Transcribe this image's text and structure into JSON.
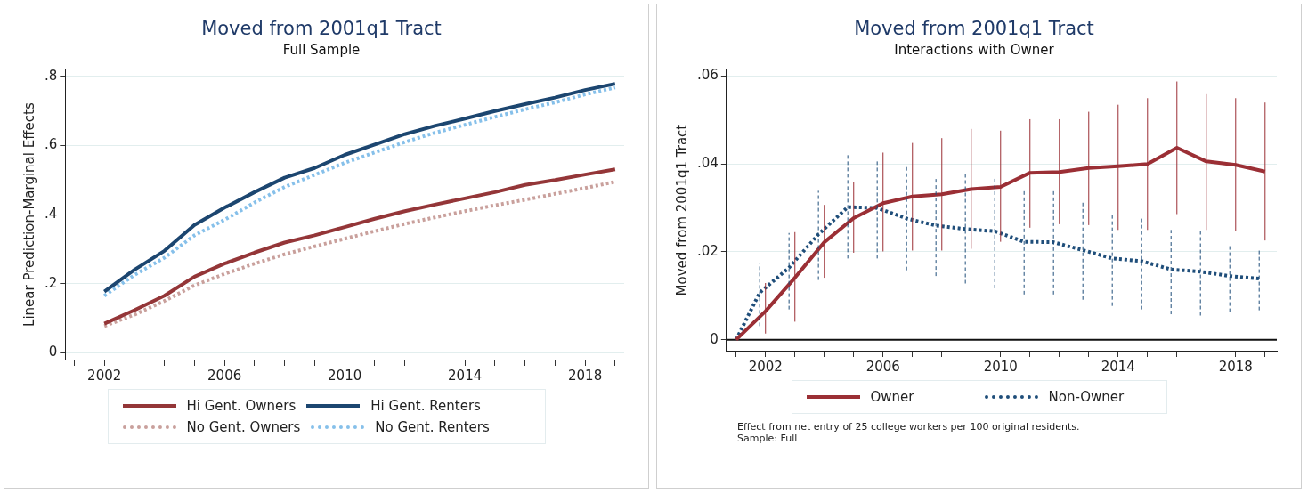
{
  "chart_data": [
    {
      "type": "line",
      "title": "Moved from 2001q1 Tract",
      "subtitle": "Full Sample",
      "ylabel": "Linear Prediction-Marginal Effects",
      "x": [
        2002,
        2003,
        2004,
        2005,
        2006,
        2007,
        2008,
        2009,
        2010,
        2011,
        2012,
        2013,
        2014,
        2015,
        2016,
        2017,
        2018,
        2019
      ],
      "series": [
        {
          "name": "Hi Gent. Owners",
          "color": "#943638",
          "line_style": "solid",
          "values": [
            0.084,
            0.123,
            0.165,
            0.22,
            0.258,
            0.29,
            0.319,
            0.34,
            0.364,
            0.388,
            0.41,
            0.429,
            0.447,
            0.465,
            0.486,
            0.5,
            0.516,
            0.531
          ]
        },
        {
          "name": "Hi Gent. Renters",
          "color": "#1c4670",
          "line_style": "solid",
          "values": [
            0.177,
            0.24,
            0.295,
            0.37,
            0.42,
            0.465,
            0.507,
            0.535,
            0.573,
            0.603,
            0.633,
            0.657,
            0.678,
            0.7,
            0.72,
            0.739,
            0.761,
            0.779
          ]
        },
        {
          "name": "No Gent. Owners",
          "color": "#c9a09c",
          "line_style": "dotted",
          "values": [
            0.077,
            0.11,
            0.15,
            0.195,
            0.228,
            0.258,
            0.285,
            0.308,
            0.33,
            0.352,
            0.373,
            0.392,
            0.41,
            0.427,
            0.443,
            0.46,
            0.477,
            0.495
          ]
        },
        {
          "name": "No Gent. Renters",
          "color": "#86c0ea",
          "line_style": "dotted",
          "values": [
            0.165,
            0.225,
            0.275,
            0.34,
            0.385,
            0.435,
            0.48,
            0.515,
            0.55,
            0.58,
            0.61,
            0.637,
            0.66,
            0.683,
            0.705,
            0.725,
            0.748,
            0.768
          ]
        }
      ],
      "xlim": [
        2000.7,
        2019.3
      ],
      "xticks": [
        {
          "value": 2001,
          "label": null
        },
        2002,
        {
          "value": 2003,
          "label": null
        },
        {
          "value": 2004,
          "label": null
        },
        {
          "value": 2005,
          "label": null
        },
        2006,
        {
          "value": 2007,
          "label": null
        },
        {
          "value": 2008,
          "label": null
        },
        {
          "value": 2009,
          "label": null
        },
        2010,
        {
          "value": 2011,
          "label": null
        },
        {
          "value": 2012,
          "label": null
        },
        {
          "value": 2013,
          "label": null
        },
        2014,
        {
          "value": 2015,
          "label": null
        },
        {
          "value": 2016,
          "label": null
        },
        {
          "value": 2017,
          "label": null
        },
        2018,
        {
          "value": 2019,
          "label": null
        }
      ],
      "ylim": [
        -0.02,
        0.82
      ],
      "yticks": [
        0,
        {
          "value": 0.2,
          "label": ".2"
        },
        {
          "value": 0.4,
          "label": ".4"
        },
        {
          "value": 0.6,
          "label": ".6"
        },
        {
          "value": 0.8,
          "label": ".8"
        }
      ],
      "grid": "y",
      "legend": "bottom",
      "marker": "none"
    },
    {
      "type": "line",
      "title": "Moved from 2001q1 Tract",
      "subtitle": "Interactions with Owner",
      "ylabel": "Moved from 2001q1 Tract",
      "x": [
        2001,
        2002,
        2003,
        2004,
        2005,
        2006,
        2007,
        2008,
        2009,
        2010,
        2011,
        2012,
        2013,
        2014,
        2015,
        2016,
        2017,
        2018,
        2019
      ],
      "series": [
        {
          "name": "Owner",
          "color": "#9b2f35",
          "line_style": "solid",
          "values": [
            0,
            0.0065,
            0.0141,
            0.0222,
            0.0277,
            0.0311,
            0.0326,
            0.0331,
            0.0343,
            0.0348,
            0.038,
            0.0382,
            0.0391,
            0.0395,
            0.04,
            0.0437,
            0.0406,
            0.0398,
            0.0383
          ],
          "errors": [
            null,
            [
              0.0014,
              0.0129
            ],
            [
              0.0041,
              0.0245
            ],
            [
              0.0141,
              0.0307
            ],
            [
              0.0198,
              0.0359
            ],
            [
              0.0201,
              0.0426
            ],
            [
              0.0203,
              0.0448
            ],
            [
              0.0203,
              0.0459
            ],
            [
              0.0207,
              0.048
            ],
            [
              0.0223,
              0.0476
            ],
            [
              0.0255,
              0.0502
            ],
            [
              0.0263,
              0.0502
            ],
            [
              0.0261,
              0.0519
            ],
            [
              0.025,
              0.0535
            ],
            [
              0.025,
              0.055
            ],
            [
              0.0286,
              0.0588
            ],
            [
              0.025,
              0.0559
            ],
            [
              0.0247,
              0.055
            ],
            [
              0.0226,
              0.054
            ]
          ]
        },
        {
          "name": "Non-Owner",
          "color": "#1f4e7a",
          "line_style": "dotted",
          "x": [
            2001,
            2001.8,
            2002.8,
            2003.8,
            2004.8,
            2005.8,
            2006.8,
            2007.8,
            2008.8,
            2009.8,
            2010.8,
            2011.8,
            2012.8,
            2013.8,
            2014.8,
            2015.8,
            2016.8,
            2017.8,
            2018.8
          ],
          "values": [
            0,
            0.0107,
            0.0164,
            0.024,
            0.0302,
            0.03,
            0.0276,
            0.026,
            0.0252,
            0.0247,
            0.0223,
            0.0222,
            0.0204,
            0.0185,
            0.0179,
            0.016,
            0.0155,
            0.0145,
            0.0139
          ],
          "errors": [
            null,
            [
              0.0031,
              0.0174
            ],
            [
              0.0069,
              0.0243
            ],
            [
              0.0136,
              0.0339
            ],
            [
              0.0185,
              0.0423
            ],
            [
              0.0185,
              0.0409
            ],
            [
              0.0158,
              0.0397
            ],
            [
              0.0145,
              0.0369
            ],
            [
              0.0128,
              0.0378
            ],
            [
              0.0117,
              0.0372
            ],
            [
              0.0103,
              0.034
            ],
            [
              0.0103,
              0.034
            ],
            [
              0.0091,
              0.0317
            ],
            [
              0.0077,
              0.0286
            ],
            [
              0.0069,
              0.0276
            ],
            [
              0.0058,
              0.025
            ],
            [
              0.0055,
              0.0247
            ],
            [
              0.0063,
              0.0219
            ],
            [
              0.0067,
              0.0207
            ]
          ]
        }
      ],
      "xlim": [
        2000.67,
        2019.4
      ],
      "xticks": [
        {
          "value": 2001,
          "label": null
        },
        2002,
        {
          "value": 2003,
          "label": null
        },
        {
          "value": 2004,
          "label": null
        },
        {
          "value": 2005,
          "label": null
        },
        2006,
        {
          "value": 2007,
          "label": null
        },
        {
          "value": 2008,
          "label": null
        },
        {
          "value": 2009,
          "label": null
        },
        2010,
        {
          "value": 2011,
          "label": null
        },
        {
          "value": 2012,
          "label": null
        },
        {
          "value": 2013,
          "label": null
        },
        2014,
        {
          "value": 2015,
          "label": null
        },
        {
          "value": 2016,
          "label": null
        },
        {
          "value": 2017,
          "label": null
        },
        2018,
        {
          "value": 2019,
          "label": null
        }
      ],
      "ylim": [
        -0.0025,
        0.0615
      ],
      "yticks": [
        0,
        {
          "value": 0.02,
          "label": ".02"
        },
        {
          "value": 0.04,
          "label": ".04"
        },
        {
          "value": 0.06,
          "label": ".06"
        }
      ],
      "ref_lines": [
        {
          "axis": "y",
          "value": 0,
          "color": "#111111"
        }
      ],
      "grid": "y",
      "legend": "bottom",
      "marker": "none",
      "annotations": [
        "Effect from net entry of 25 college workers per 100 original residents.",
        "Sample: Full"
      ]
    }
  ]
}
